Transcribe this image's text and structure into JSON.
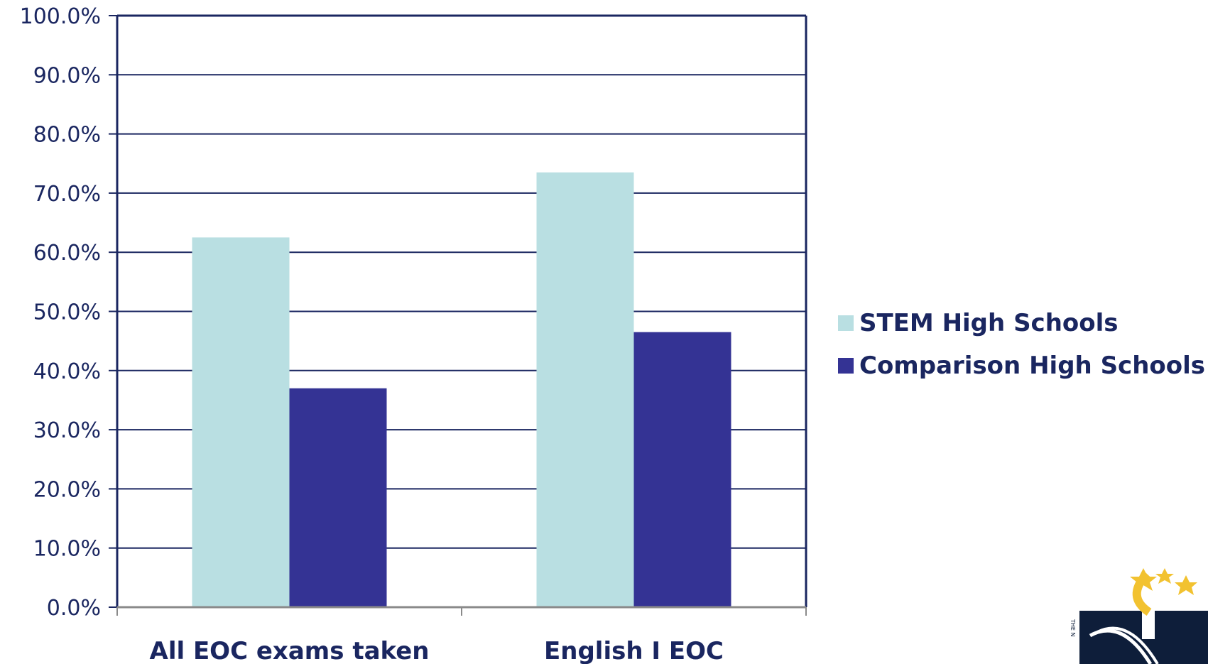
{
  "chart_data": {
    "type": "bar",
    "categories": [
      "All EOC exams taken",
      "English I EOC"
    ],
    "series": [
      {
        "name": "STEM High Schools",
        "values": [
          62.5,
          73.5
        ],
        "color": "#b9dfe2"
      },
      {
        "name": "Comparison High Schools",
        "values": [
          37.0,
          46.5
        ],
        "color": "#343394"
      }
    ],
    "ylim": [
      0,
      100
    ],
    "yticks": [
      "0.0%",
      "10.0%",
      "20.0%",
      "30.0%",
      "40.0%",
      "50.0%",
      "60.0%",
      "70.0%",
      "80.0%",
      "90.0%",
      "100.0%"
    ],
    "ytick_values": [
      0,
      10,
      20,
      30,
      40,
      50,
      60,
      70,
      80,
      90,
      100
    ],
    "grid": true,
    "legend_position": "right",
    "colors": {
      "grid": "#1a2660",
      "text": "#1a2660",
      "axis": "#8a8a8a"
    }
  },
  "logo": {
    "icon": "university-seal-icon",
    "colors": {
      "navy": "#0e1e3a",
      "gold": "#f2c230"
    }
  }
}
